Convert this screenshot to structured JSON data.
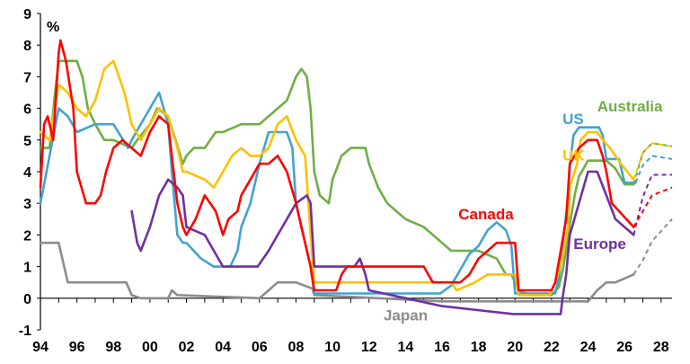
{
  "chart_data": {
    "type": "line",
    "unit_label": "%",
    "x_ticks": [
      "94",
      "96",
      "98",
      "00",
      "02",
      "04",
      "06",
      "08",
      "10",
      "12",
      "14",
      "16",
      "18",
      "20",
      "22",
      "24",
      "26",
      "28"
    ],
    "y_ticks": [
      "-1",
      "0",
      "1",
      "2",
      "3",
      "4",
      "5",
      "6",
      "7",
      "8",
      "9"
    ],
    "xlim": [
      1994,
      2028.6
    ],
    "ylim": [
      -1,
      9
    ],
    "grid": false,
    "series": [
      {
        "name": "Australia",
        "color": "#70ad47",
        "x": [
          1994,
          1994.5,
          1994.8,
          1995,
          1996,
          1996.3,
          1996.6,
          1997,
          1997.5,
          1998,
          1999,
          1999.3,
          2000,
          2000.4,
          2001,
          2001.4,
          2001.8,
          2002,
          2002.4,
          2003,
          2003.6,
          2004,
          2005,
          2006,
          2006.5,
          2007,
          2007.5,
          2008,
          2008.3,
          2008.6,
          2008.8,
          2009,
          2009.3,
          2009.8,
          2010,
          2010.5,
          2011,
          2011.8,
          2012,
          2012.5,
          2013,
          2013.5,
          2014,
          2015,
          2015.5,
          2016,
          2016.5,
          2017,
          2018,
          2019,
          2019.5,
          2019.8,
          2020,
          2020.2,
          2020.8,
          2022,
          2022.4,
          2022.6,
          2022.9,
          2023,
          2023.3,
          2023.5,
          2024,
          2025,
          2025.5,
          2026,
          2026.5
        ],
        "y": [
          4.75,
          4.75,
          6.5,
          7.5,
          7.5,
          7,
          6,
          5.5,
          5,
          5,
          4.75,
          5,
          5.5,
          6,
          5.75,
          5,
          4.25,
          4.5,
          4.75,
          4.75,
          5.25,
          5.25,
          5.5,
          5.5,
          5.75,
          6,
          6.25,
          7,
          7.25,
          7,
          6,
          4,
          3.25,
          3,
          3.75,
          4.5,
          4.75,
          4.75,
          4.25,
          3.5,
          3,
          2.75,
          2.5,
          2.25,
          2,
          1.75,
          1.5,
          1.5,
          1.5,
          1.25,
          0.75,
          0.75,
          0.5,
          0.25,
          0.1,
          0.1,
          0.35,
          0.85,
          1.85,
          2.35,
          3.35,
          3.85,
          4.35,
          4.35,
          4.1,
          3.6,
          3.6
        ],
        "projection": {
          "x": [
            2026.5,
            2027,
            2027.5,
            2028.6
          ],
          "y": [
            3.6,
            4.6,
            4.9,
            4.8
          ]
        },
        "label": "Australia",
        "label_x": 2024.5,
        "label_y": 5.9
      },
      {
        "name": "US",
        "color": "#41a3d0",
        "x": [
          1994,
          1994.5,
          1995,
          1995.5,
          1996,
          1997,
          1998,
          1998.8,
          1999,
          1999.5,
          2000,
          2000.5,
          2001,
          2001.2,
          2001.5,
          2001.8,
          2002,
          2002.8,
          2003.5,
          2004.4,
          2004.8,
          2005,
          2005.5,
          2006,
          2006.5,
          2007,
          2007.5,
          2007.8,
          2008,
          2008.3,
          2008.8,
          2009,
          2015.9,
          2016.5,
          2017,
          2017.5,
          2018,
          2018.5,
          2019,
          2019.5,
          2019.8,
          2020,
          2020.3,
          2022.2,
          2022.4,
          2022.6,
          2022.9,
          2023,
          2023.2,
          2023.5,
          2024,
          2024.6,
          2024.8,
          2025,
          2025.7,
          2026,
          2026.6
        ],
        "y": [
          3,
          4.5,
          6,
          5.75,
          5.25,
          5.5,
          5.5,
          4.75,
          5,
          5.5,
          6,
          6.5,
          5.5,
          4,
          2,
          1.75,
          1.75,
          1.25,
          1,
          1,
          1.5,
          2.25,
          3,
          4.25,
          5.25,
          5.25,
          5.25,
          4.75,
          3,
          2.25,
          1,
          0.15,
          0.15,
          0.4,
          0.9,
          1.4,
          1.65,
          2.15,
          2.4,
          2.15,
          1.65,
          0.15,
          0.15,
          0.15,
          0.65,
          1.65,
          3.15,
          4.15,
          5.15,
          5.4,
          5.4,
          5.4,
          5.15,
          4.4,
          4.4,
          3.65,
          3.65
        ],
        "projection": {
          "x": [
            2026.6,
            2027,
            2027.5,
            2028.6
          ],
          "y": [
            3.65,
            4.2,
            4.5,
            4.4
          ]
        },
        "label": "US",
        "label_x": 2022.6,
        "label_y": 5.5
      },
      {
        "name": "UK",
        "color": "#ffc000",
        "x": [
          1994,
          1994.5,
          1995,
          1995.5,
          1996,
          1996.5,
          1997,
          1997.5,
          1998,
          1998.6,
          1999,
          1999.5,
          2000,
          2000.5,
          2001,
          2001.5,
          2001.8,
          2002,
          2003,
          2003.5,
          2004,
          2004.5,
          2005,
          2005.5,
          2006,
          2006.5,
          2007,
          2007.5,
          2008,
          2008.5,
          2008.8,
          2009,
          2016.5,
          2016.8,
          2017.8,
          2018.5,
          2020,
          2020.2,
          2021.9,
          2022.2,
          2022.6,
          2022.9,
          2023,
          2023.4,
          2023.6,
          2024,
          2024.5,
          2024.8,
          2025.2,
          2025.5,
          2025.8,
          2026.5
        ],
        "y": [
          5.25,
          5,
          6.75,
          6.5,
          6,
          5.75,
          6.25,
          7.25,
          7.5,
          6.5,
          5.5,
          5,
          5.5,
          6,
          5.75,
          4.75,
          4,
          4,
          3.75,
          3.5,
          4,
          4.5,
          4.75,
          4.5,
          4.5,
          4.75,
          5.5,
          5.75,
          5,
          4.5,
          2,
          0.5,
          0.5,
          0.25,
          0.5,
          0.75,
          0.75,
          0.1,
          0.1,
          0.5,
          1.25,
          2.25,
          3.5,
          4.25,
          5,
          5.25,
          5.25,
          5,
          4.75,
          4.5,
          4.25,
          3.75
        ],
        "projection": {
          "x": [
            2026.5,
            2027,
            2027.5,
            2028.6
          ],
          "y": [
            3.75,
            4.6,
            4.9,
            4.8
          ]
        },
        "label": "UK",
        "label_x": 2022.6,
        "label_y": 4.35
      },
      {
        "name": "Canada",
        "color": "#ff0000",
        "x": [
          1994,
          1994.2,
          1994.4,
          1994.7,
          1995,
          1995.1,
          1995.4,
          1995.8,
          1996,
          1996.5,
          1997,
          1997.3,
          1997.6,
          1998,
          1998.5,
          1999,
          1999.5,
          2000,
          2000.5,
          2001,
          2001.5,
          2001.8,
          2002,
          2002.5,
          2003,
          2003.3,
          2003.6,
          2004,
          2004.3,
          2004.8,
          2005,
          2005.5,
          2006,
          2006.5,
          2007,
          2007.5,
          2008,
          2008.3,
          2008.8,
          2009,
          2010.2,
          2010.5,
          2010.8,
          2015,
          2015.5,
          2017,
          2017.5,
          2018,
          2018.5,
          2019,
          2020,
          2020.2,
          2022,
          2022.2,
          2022.5,
          2022.8,
          2023,
          2023.5,
          2024,
          2024.5,
          2024.8,
          2025,
          2025.3,
          2026.5
        ],
        "y": [
          3.5,
          5.5,
          5.75,
          5,
          7.75,
          8.15,
          7.5,
          6,
          4,
          3,
          3,
          3.25,
          4,
          4.75,
          5,
          4.75,
          4.5,
          5.25,
          5.75,
          5.5,
          3,
          2.25,
          2,
          2.5,
          3.25,
          3,
          2.75,
          2,
          2.5,
          2.75,
          3.25,
          3.75,
          4.25,
          4.25,
          4.5,
          4,
          3,
          2.25,
          1,
          0.25,
          0.25,
          0.75,
          1,
          1,
          0.5,
          0.5,
          0.75,
          1.25,
          1.5,
          1.75,
          1.75,
          0.25,
          0.25,
          0.5,
          1.5,
          2.5,
          4.25,
          4.75,
          5,
          5,
          4.5,
          4,
          3,
          2.25
        ],
        "projection": {
          "x": [
            2026.5,
            2027,
            2027.5,
            2028.6
          ],
          "y": [
            2.25,
            2.75,
            3.25,
            3.5
          ]
        },
        "label": "Canada",
        "label_x": 2016.9,
        "label_y": 2.5
      },
      {
        "name": "Europe",
        "color": "#7030a0",
        "x": [
          1999,
          1999.3,
          1999.5,
          2000,
          2000.5,
          2001,
          2001.5,
          2001.8,
          2002,
          2003,
          2003.5,
          2004,
          2005.9,
          2006.5,
          2007,
          2007.5,
          2008,
          2008.6,
          2008.8,
          2009,
          2011.2,
          2011.5,
          2011.8,
          2012,
          2014,
          2016,
          2019.9,
          2022.5,
          2022.6,
          2022.8,
          2023,
          2023.5,
          2024,
          2024.5,
          2025,
          2025.5,
          2026.5
        ],
        "y": [
          2.75,
          1.75,
          1.5,
          2.25,
          3.25,
          3.75,
          3.5,
          3.25,
          2.25,
          2,
          1.5,
          1,
          1,
          1.5,
          2,
          2.5,
          3,
          3.25,
          3,
          1,
          1,
          1.25,
          0.75,
          0.25,
          0,
          -0.25,
          -0.5,
          -0.5,
          0,
          0.75,
          2,
          3,
          4,
          4,
          3.25,
          2.5,
          2
        ],
        "projection": {
          "x": [
            2026.5,
            2027,
            2027.5,
            2028.6
          ],
          "y": [
            2,
            3.2,
            3.9,
            3.9
          ]
        },
        "label": "Europe",
        "label_x": 2023.2,
        "label_y": 1.55
      },
      {
        "name": "Japan",
        "color": "#8c8c8c",
        "x": [
          1994,
          1995,
          1995.3,
          1995.5,
          1996,
          1998.7,
          1999,
          1999.5,
          2001,
          2001.2,
          2001.5,
          2006,
          2006.5,
          2007,
          2007.5,
          2008,
          2008.9,
          2009,
          2016,
          2024,
          2024.5,
          2025,
          2025.5,
          2026.5
        ],
        "y": [
          1.75,
          1.75,
          1,
          0.5,
          0.5,
          0.5,
          0.1,
          0,
          0,
          0.25,
          0.1,
          0,
          0.25,
          0.5,
          0.5,
          0.5,
          0.3,
          0.1,
          -0.1,
          -0.1,
          0.25,
          0.5,
          0.5,
          0.75
        ],
        "projection": {
          "x": [
            2026.5,
            2027,
            2027.5,
            2028.6
          ],
          "y": [
            0.75,
            1.2,
            1.8,
            2.5
          ]
        },
        "label": "Japan",
        "label_x": 2012.8,
        "label_y": -0.7
      }
    ]
  }
}
